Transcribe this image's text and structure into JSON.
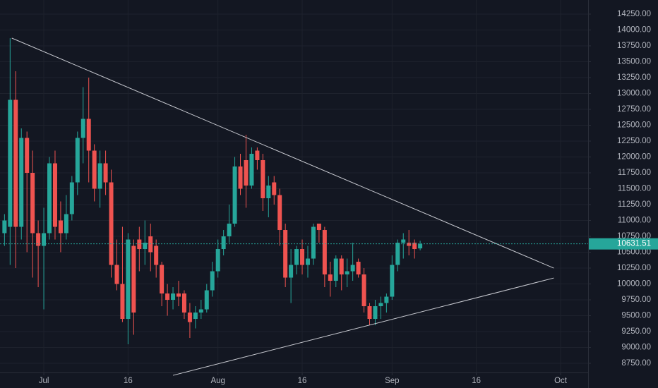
{
  "chart_data": {
    "type": "candlestick",
    "up_color": "#26a69a",
    "down_color": "#ef5350",
    "grid": true,
    "xlim": [
      -0.8,
      103.9
    ],
    "ylim": [
      8606,
      14472
    ],
    "xticks": [
      {
        "value": 7,
        "label": "Jul"
      },
      {
        "value": 22,
        "label": "16"
      },
      {
        "value": 38,
        "label": "Aug"
      },
      {
        "value": 53,
        "label": "16"
      },
      {
        "value": 69,
        "label": "Sep"
      },
      {
        "value": 84,
        "label": "16"
      },
      {
        "value": 99,
        "label": "Oct"
      }
    ],
    "yticks": [
      {
        "value": 8750,
        "label": "8750.00"
      },
      {
        "value": 9000,
        "label": "9000.00"
      },
      {
        "value": 9250,
        "label": "9250.00"
      },
      {
        "value": 9500,
        "label": "9500.00"
      },
      {
        "value": 9750,
        "label": "9750.00"
      },
      {
        "value": 10000,
        "label": "10000.00"
      },
      {
        "value": 10250,
        "label": "10250.00"
      },
      {
        "value": 10500,
        "label": "10500.00"
      },
      {
        "value": 10750,
        "label": "10750.00"
      },
      {
        "value": 11000,
        "label": "11000.00"
      },
      {
        "value": 11250,
        "label": "11250.00"
      },
      {
        "value": 11500,
        "label": "11500.00"
      },
      {
        "value": 11750,
        "label": "11750.00"
      },
      {
        "value": 12000,
        "label": "12000.00"
      },
      {
        "value": 12250,
        "label": "12250.00"
      },
      {
        "value": 12500,
        "label": "12500.00"
      },
      {
        "value": 12750,
        "label": "12750.00"
      },
      {
        "value": 13000,
        "label": "13000.00"
      },
      {
        "value": 13250,
        "label": "13250.00"
      },
      {
        "value": 13500,
        "label": "13500.00"
      },
      {
        "value": 13750,
        "label": "13750.00"
      },
      {
        "value": 14000,
        "label": "14000.00"
      },
      {
        "value": 14250,
        "label": "14250.00"
      }
    ],
    "x": [
      0,
      1,
      2,
      3,
      4,
      5,
      6,
      7,
      8,
      9,
      10,
      11,
      12,
      13,
      14,
      15,
      16,
      17,
      18,
      19,
      20,
      21,
      22,
      23,
      24,
      25,
      26,
      27,
      28,
      29,
      30,
      31,
      32,
      33,
      34,
      35,
      36,
      37,
      38,
      39,
      40,
      41,
      42,
      43,
      44,
      45,
      46,
      47,
      48,
      49,
      50,
      51,
      52,
      53,
      54,
      55,
      56,
      57,
      58,
      59,
      60,
      61,
      62,
      63,
      64,
      65,
      66,
      67,
      68,
      69,
      70,
      71,
      72,
      73,
      74
    ],
    "open": [
      10800,
      10900,
      12900,
      10900,
      12300,
      11750,
      10800,
      10600,
      10800,
      11900,
      11000,
      10800,
      11100,
      11600,
      12300,
      12600,
      12100,
      11500,
      11900,
      11600,
      10300,
      10000,
      9450,
      10600,
      10700,
      10550,
      10750,
      10600,
      10300,
      9850,
      9750,
      9850,
      9850,
      9550,
      9450,
      9550,
      9600,
      9900,
      10200,
      10550,
      10750,
      10950,
      11850,
      11950,
      11550,
      12100,
      11950,
      11350,
      11600,
      11400,
      10850,
      10100,
      10300,
      10550,
      10300,
      10400,
      10950,
      10850,
      10150,
      10050,
      10400,
      10150,
      10200,
      10350,
      10150,
      9650,
      9450,
      9650,
      9700,
      9800,
      10300,
      10650,
      10650,
      10650,
      10560
    ],
    "high": [
      11100,
      13870,
      13350,
      12450,
      12400,
      12100,
      11000,
      11200,
      12000,
      12100,
      11300,
      11400,
      11700,
      12400,
      13100,
      13250,
      12200,
      12100,
      12100,
      11800,
      10700,
      10900,
      10800,
      10700,
      10900,
      11000,
      10950,
      10700,
      10350,
      10000,
      9950,
      10050,
      9900,
      9700,
      9650,
      9750,
      10000,
      10350,
      10700,
      10850,
      11250,
      12000,
      12050,
      12350,
      12150,
      12150,
      12050,
      11700,
      11700,
      11500,
      10950,
      10550,
      10600,
      10700,
      10600,
      10950,
      10950,
      10900,
      10350,
      10450,
      10450,
      10400,
      10650,
      10400,
      10250,
      9700,
      9750,
      9800,
      9850,
      10450,
      10700,
      10800,
      10850,
      10700,
      10680
    ],
    "low": [
      10600,
      10300,
      10250,
      10700,
      10500,
      10100,
      9950,
      9600,
      10700,
      10700,
      10500,
      10700,
      11000,
      11400,
      11900,
      11600,
      11300,
      11200,
      11400,
      10100,
      9900,
      9400,
      9050,
      9200,
      10200,
      10300,
      10200,
      10100,
      9650,
      9500,
      9600,
      9650,
      9450,
      9150,
      9300,
      9450,
      9550,
      9800,
      10100,
      10450,
      10650,
      10900,
      11400,
      11200,
      11500,
      11800,
      11150,
      11050,
      11250,
      10600,
      9950,
      9700,
      10150,
      10150,
      10100,
      10300,
      10650,
      9950,
      9800,
      9950,
      9900,
      9950,
      10050,
      10100,
      9550,
      9350,
      9350,
      9450,
      9550,
      9750,
      10200,
      10400,
      10450,
      10400,
      10530
    ],
    "close": [
      11000,
      12900,
      10900,
      12300,
      11750,
      10800,
      10600,
      10800,
      11900,
      10900,
      10800,
      11100,
      11600,
      12300,
      12600,
      12100,
      11500,
      11900,
      11600,
      10300,
      10000,
      9450,
      10700,
      9550,
      10550,
      10650,
      10500,
      10300,
      9850,
      9750,
      9850,
      9800,
      9550,
      9400,
      9550,
      9600,
      9900,
      10200,
      10550,
      10750,
      10950,
      11850,
      11500,
      11550,
      12050,
      11950,
      11350,
      11550,
      11400,
      10850,
      10100,
      10300,
      10550,
      10300,
      10400,
      10900,
      10850,
      10150,
      10050,
      10400,
      10150,
      10200,
      10300,
      10150,
      9650,
      9450,
      9650,
      9700,
      9800,
      10300,
      10650,
      10700,
      10600,
      10550,
      10631.51
    ],
    "trendlines": [
      {
        "x": [
          1.3,
          97.8
        ],
        "y": [
          13872,
          10250
        ]
      },
      {
        "x": [
          30,
          97.8
        ],
        "y": [
          8561,
          10094
        ]
      }
    ]
  }
}
